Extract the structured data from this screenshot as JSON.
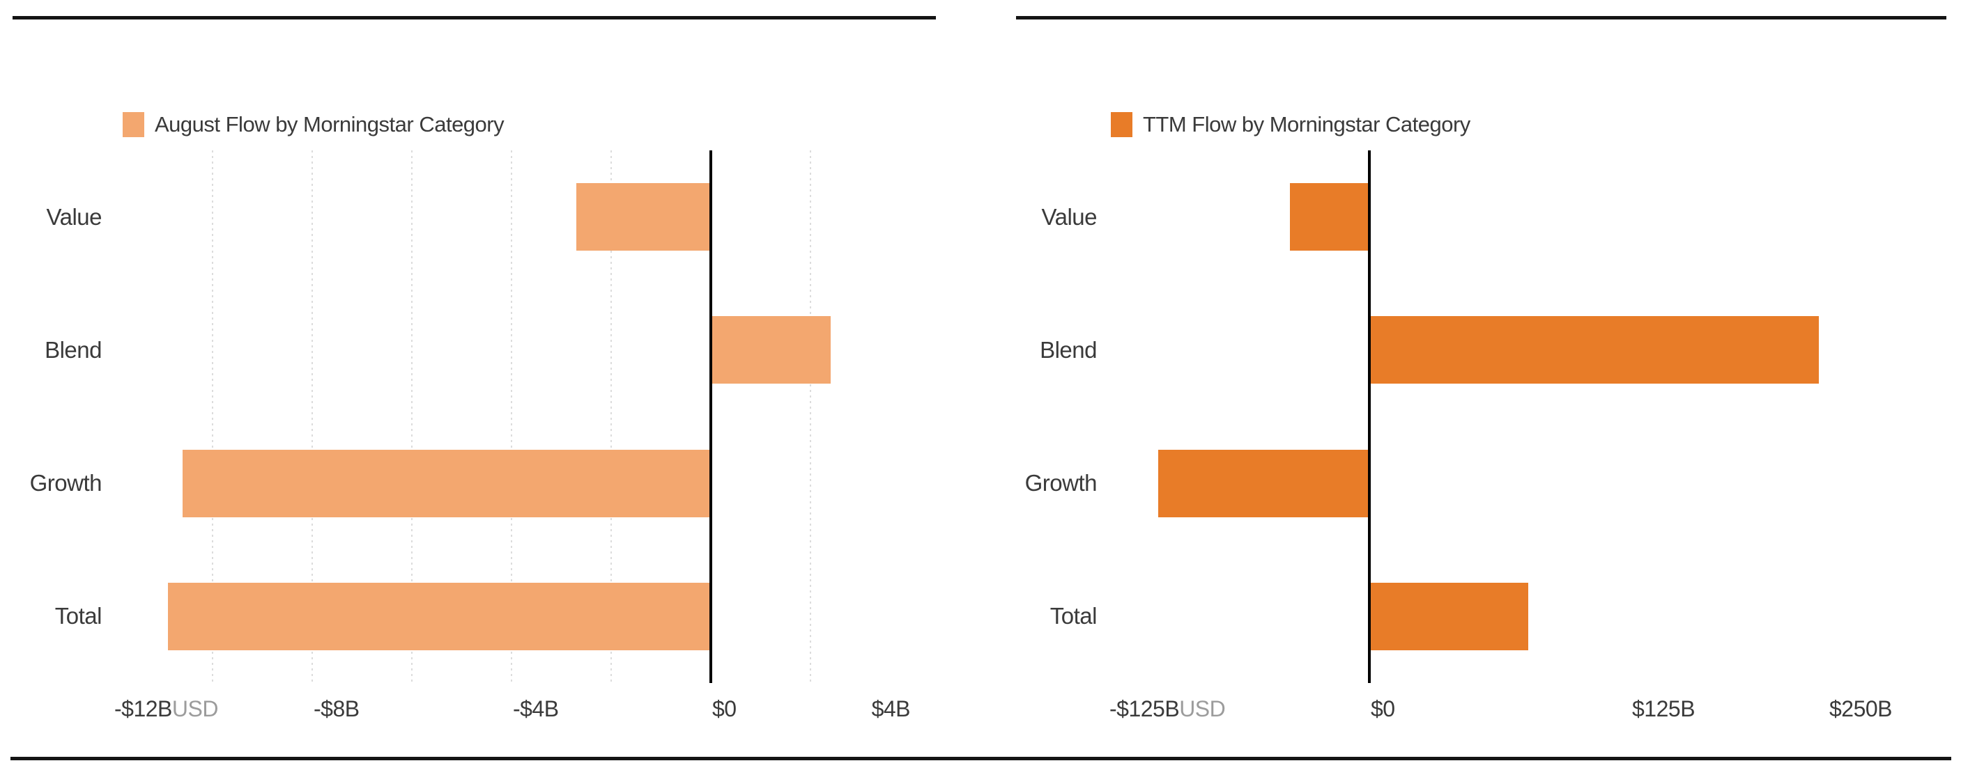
{
  "page": {
    "background": "#ffffff"
  },
  "colors": {
    "august_bar": "#f3a76f",
    "ttm_bar": "#e87c28",
    "zero_axis_line": "#000000",
    "gridline": "#dcdcdc",
    "label_text": "#3a3a3a",
    "currency_suffix_text": "#9c9c9c",
    "border_rule": "#141414"
  },
  "chart_data": [
    {
      "type": "bar",
      "orientation": "horizontal",
      "legend": "August Flow by Morningstar Category",
      "legend_position": "top-left",
      "bar_color": "#f3a76f",
      "categories": [
        "Value",
        "Blend",
        "Growth",
        "Total"
      ],
      "values_billions_usd": [
        -2.7,
        2.4,
        -10.6,
        -10.9
      ],
      "unit": "USD billions",
      "xlim": [
        -12,
        4
      ],
      "grid": "dotted-vertical",
      "gridline_values": [
        -10,
        -8,
        -6,
        -4,
        -2,
        2
      ],
      "zero_line": true,
      "ticks": [
        {
          "value": -12,
          "label": "-$12B",
          "suffix": "USD"
        },
        {
          "value": -8,
          "label": "-$8B"
        },
        {
          "value": -4,
          "label": "-$4B"
        },
        {
          "value": 0,
          "label": "$0"
        },
        {
          "value": 4,
          "label": "$4B"
        }
      ]
    },
    {
      "type": "bar",
      "orientation": "horizontal",
      "legend": "TTM Flow by Morningstar Category",
      "legend_position": "top-left",
      "bar_color": "#e87c28",
      "categories": [
        "Value",
        "Blend",
        "Growth",
        "Total"
      ],
      "values_billions_usd": [
        -38,
        215,
        -101,
        76
      ],
      "unit": "USD billions",
      "xlim": [
        -125,
        250
      ],
      "grid": "none",
      "gridline_values": [],
      "zero_line": true,
      "ticks": [
        {
          "value": -125,
          "label": "-$125B",
          "suffix": "USD"
        },
        {
          "value": 0,
          "label": "$0"
        },
        {
          "value": 125,
          "label": "$125B"
        },
        {
          "value": 250,
          "label": "$250B"
        }
      ]
    }
  ]
}
